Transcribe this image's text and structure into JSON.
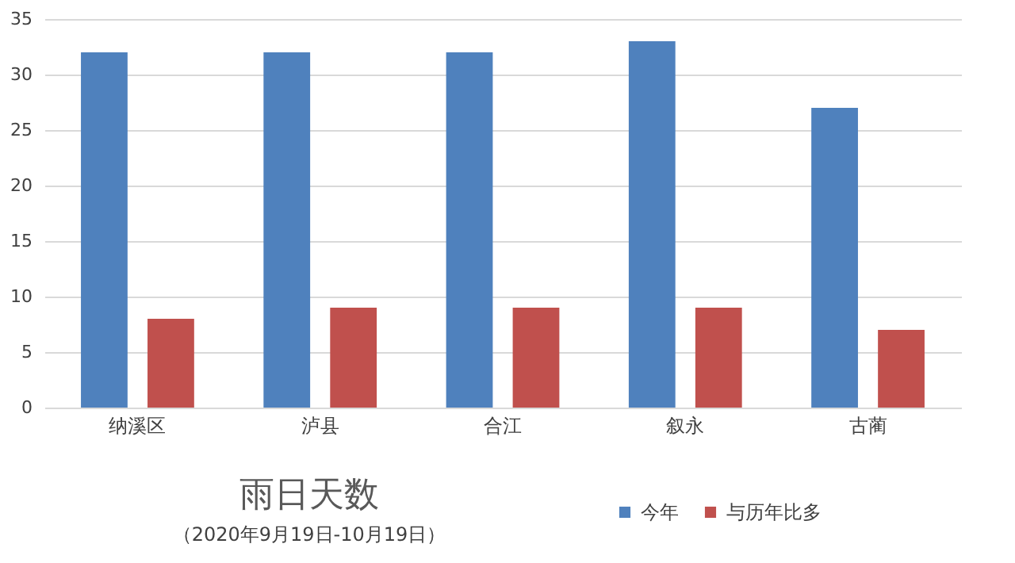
{
  "chart_data": {
    "type": "bar",
    "title": "雨日天数",
    "subtitle": "（2020年9月19日-10月19日）",
    "categories": [
      "纳溪区",
      "泸县",
      "合江",
      "叙永",
      "古蔺"
    ],
    "series": [
      {
        "name": "今年",
        "color": "#4f81bd",
        "values": [
          32,
          32,
          32,
          33,
          27
        ]
      },
      {
        "name": "与历年比多",
        "color": "#c0504d",
        "values": [
          8,
          9,
          9,
          9,
          7
        ]
      }
    ],
    "ylim": [
      0,
      35
    ],
    "yticks": [
      0,
      5,
      10,
      15,
      20,
      25,
      30,
      35
    ],
    "grid": "y",
    "legend": "bottom right"
  }
}
